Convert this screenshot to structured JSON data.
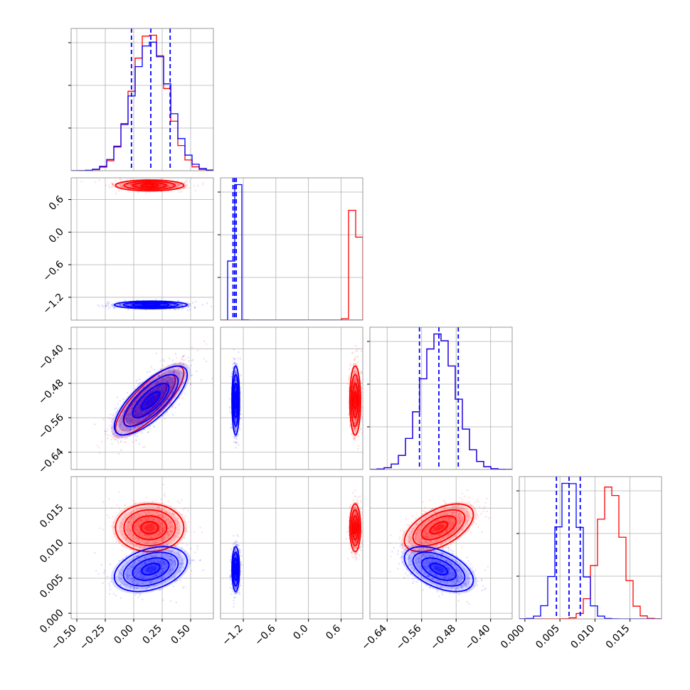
{
  "colors": {
    "red": "#ff0000",
    "blue": "#0000ff",
    "grid": "#b0b0b0",
    "frame": "#808080"
  },
  "chart_data": {
    "type": "corner",
    "title": "",
    "grid": true,
    "parameters": [
      {
        "label": "",
        "range": [
          -0.55,
          0.7
        ],
        "ticks": [
          -0.5,
          -0.25,
          0.0,
          0.25,
          0.5
        ],
        "tick_labels": [
          "−0.50",
          "−0.25",
          "0.00",
          "0.25",
          "0.50"
        ]
      },
      {
        "label": "",
        "range": [
          -1.62,
          1.0
        ],
        "ticks": [
          -1.2,
          -0.6,
          0.0,
          0.6
        ],
        "tick_labels": [
          "−1.2",
          "−0.6",
          "0.0",
          "0.6"
        ]
      },
      {
        "label": "",
        "range": [
          -0.68,
          -0.35
        ],
        "ticks": [
          -0.64,
          -0.56,
          -0.48,
          -0.4
        ],
        "tick_labels": [
          "−0.64",
          "−0.56",
          "−0.48",
          "−0.40"
        ]
      },
      {
        "label": "",
        "range": [
          -0.0008,
          0.0195
        ],
        "ticks": [
          0.0,
          0.005,
          0.01,
          0.015
        ],
        "tick_labels": [
          "0.000",
          "0.005",
          "0.010",
          "0.015"
        ]
      }
    ],
    "series": [
      {
        "color": "#ff0000",
        "means": [
          0.14,
          0.86,
          -0.52,
          0.0122
        ],
        "stds": [
          0.15,
          0.05,
          0.04,
          0.0017
        ],
        "corr": [
          [
            1.0,
            0.0,
            0.8,
            0.0
          ],
          [
            0.0,
            1.0,
            0.0,
            0.0
          ],
          [
            0.8,
            0.0,
            1.0,
            0.55
          ],
          [
            0.0,
            0.0,
            0.55,
            1.0
          ]
        ],
        "quantiles": []
      },
      {
        "color": "#0000ff",
        "means": [
          0.15,
          -1.34,
          -0.52,
          0.0063
        ],
        "stds": [
          0.16,
          0.035,
          0.04,
          0.0016
        ],
        "corr": [
          [
            1.0,
            0.0,
            0.75,
            0.35
          ],
          [
            0.0,
            1.0,
            0.0,
            0.0
          ],
          [
            0.75,
            0.0,
            1.0,
            -0.5
          ],
          [
            0.35,
            0.0,
            -0.5,
            1.0
          ]
        ],
        "quantiles": [
          [
            -0.02,
            0.15,
            0.32
          ],
          [
            -1.39,
            -1.36,
            -1.33
          ],
          [
            -0.565,
            -0.52,
            -0.475
          ],
          [
            0.0045,
            0.0063,
            0.0079
          ]
        ]
      }
    ]
  }
}
